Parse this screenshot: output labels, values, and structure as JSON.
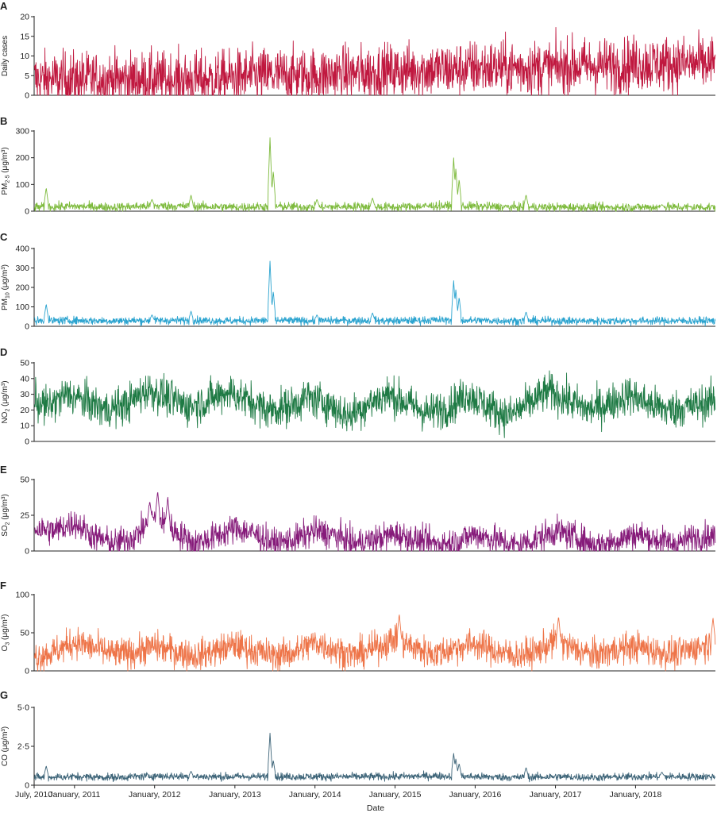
{
  "chart_data": [
    {
      "panel": "A",
      "type": "line",
      "ylabel": "Daily cases",
      "ylabel_sub": "",
      "ylabel_unit": "",
      "ylim": [
        0,
        20
      ],
      "yticks": [
        "0",
        "5",
        "10",
        "15",
        "20"
      ],
      "color": "#c0183f",
      "series": [
        {
          "x": [
            "2010-07-01",
            "2010-10-01",
            "2011-01-01",
            "2011-04-01",
            "2011-07-01",
            "2011-10-01",
            "2012-01-01",
            "2012-04-01",
            "2012-07-01",
            "2012-10-01",
            "2013-01-01",
            "2013-04-01",
            "2013-07-01",
            "2013-10-01",
            "2014-01-01",
            "2014-04-01",
            "2014-07-01",
            "2014-10-01",
            "2015-01-01",
            "2015-04-01",
            "2015-07-01",
            "2015-10-01",
            "2016-01-01",
            "2016-04-01",
            "2016-07-01",
            "2016-10-01",
            "2017-01-01",
            "2017-04-01",
            "2017-07-01",
            "2017-10-01",
            "2018-01-01",
            "2018-04-01",
            "2018-07-01",
            "2018-10-01",
            "2018-12-31"
          ],
          "values": [
            4,
            4,
            4,
            4,
            4,
            4,
            4,
            4,
            4,
            4,
            4.5,
            5,
            5,
            5,
            5,
            5.5,
            5.5,
            6,
            6,
            6.5,
            6.5,
            6.5,
            7,
            7,
            7,
            7,
            7,
            7.5,
            7.5,
            7.5,
            8,
            8,
            8,
            8,
            8
          ],
          "noise": 3.5,
          "peaks": []
        }
      ]
    },
    {
      "panel": "B",
      "type": "line",
      "ylabel": "PM",
      "ylabel_sub": "2·5",
      "ylabel_unit": " (μg/m³)",
      "ylim": [
        0,
        300
      ],
      "yticks": [
        "0",
        "100",
        "200",
        "300"
      ],
      "color": "#7dba3c",
      "series": [
        {
          "x": [
            "2010-07-01",
            "2011-01-01",
            "2011-07-01",
            "2012-01-01",
            "2012-07-01",
            "2013-01-01",
            "2013-07-01",
            "2014-01-01",
            "2014-07-01",
            "2015-01-01",
            "2015-07-01",
            "2016-01-01",
            "2016-07-01",
            "2017-01-01",
            "2017-07-01",
            "2018-01-01",
            "2018-07-01",
            "2018-12-31"
          ],
          "values": [
            15,
            18,
            15,
            20,
            18,
            15,
            18,
            15,
            18,
            15,
            20,
            18,
            15,
            15,
            14,
            15,
            15,
            15
          ],
          "noise": 8,
          "peaks": [
            [
              "2010-08-25",
              88
            ],
            [
              "2011-12-20",
              45
            ],
            [
              "2012-06-15",
              60
            ],
            [
              "2013-06-10",
              275
            ],
            [
              "2013-06-25",
              150
            ],
            [
              "2014-01-10",
              45
            ],
            [
              "2014-09-20",
              50
            ],
            [
              "2015-09-25",
              200
            ],
            [
              "2015-10-05",
              160
            ],
            [
              "2015-10-20",
              120
            ],
            [
              "2016-08-20",
              62
            ],
            [
              "2018-05-01",
              25
            ]
          ]
        }
      ]
    },
    {
      "panel": "C",
      "type": "line",
      "ylabel": "PM",
      "ylabel_sub": "10",
      "ylabel_unit": " (μg/m³)",
      "ylim": [
        0,
        400
      ],
      "yticks": [
        "0",
        "100",
        "200",
        "300",
        "400"
      ],
      "color": "#2aa3cf",
      "series": [
        {
          "x": [
            "2010-07-01",
            "2011-01-01",
            "2011-07-01",
            "2012-01-01",
            "2012-07-01",
            "2013-01-01",
            "2013-07-01",
            "2014-01-01",
            "2014-07-01",
            "2015-01-01",
            "2015-07-01",
            "2016-01-01",
            "2016-07-01",
            "2017-01-01",
            "2017-07-01",
            "2018-01-01",
            "2018-07-01",
            "2018-12-31"
          ],
          "values": [
            28,
            30,
            28,
            30,
            30,
            28,
            30,
            28,
            30,
            28,
            32,
            30,
            28,
            28,
            27,
            28,
            28,
            28
          ],
          "noise": 10,
          "peaks": [
            [
              "2010-08-25",
              115
            ],
            [
              "2011-12-20",
              60
            ],
            [
              "2012-06-15",
              78
            ],
            [
              "2013-06-10",
              335
            ],
            [
              "2013-06-25",
              180
            ],
            [
              "2014-01-10",
              60
            ],
            [
              "2014-09-20",
              70
            ],
            [
              "2015-09-25",
              235
            ],
            [
              "2015-10-05",
              190
            ],
            [
              "2015-10-20",
              150
            ],
            [
              "2016-08-20",
              75
            ]
          ]
        }
      ]
    },
    {
      "panel": "D",
      "type": "line",
      "ylabel": "NO",
      "ylabel_sub": "2",
      "ylabel_unit": " (μg/m³)",
      "ylim": [
        0,
        50
      ],
      "yticks": [
        "0",
        "10",
        "20",
        "30",
        "40",
        "50"
      ],
      "color": "#1e7a44",
      "series": [
        {
          "x": [
            "2010-07-01",
            "2010-09-01",
            "2010-12-01",
            "2011-03-01",
            "2011-06-01",
            "2011-09-01",
            "2011-12-01",
            "2012-03-01",
            "2012-06-01",
            "2012-09-01",
            "2012-12-01",
            "2013-03-01",
            "2013-06-01",
            "2013-09-01",
            "2013-12-01",
            "2014-03-01",
            "2014-06-01",
            "2014-09-01",
            "2014-12-01",
            "2015-03-01",
            "2015-06-01",
            "2015-09-01",
            "2015-12-01",
            "2016-03-01",
            "2016-06-01",
            "2016-09-01",
            "2016-12-01",
            "2017-03-01",
            "2017-06-01",
            "2017-09-01",
            "2017-12-01",
            "2018-03-01",
            "2018-06-01",
            "2018-09-01",
            "2018-12-31"
          ],
          "values": [
            26,
            22,
            30,
            25,
            20,
            24,
            33,
            28,
            22,
            26,
            32,
            26,
            20,
            22,
            28,
            24,
            16,
            24,
            30,
            24,
            18,
            22,
            30,
            22,
            16,
            24,
            32,
            26,
            20,
            24,
            30,
            24,
            20,
            22,
            26
          ],
          "noise": 6,
          "peaks": []
        }
      ]
    },
    {
      "panel": "E",
      "type": "line",
      "ylabel": "SO",
      "ylabel_sub": "2",
      "ylabel_unit": " (μg/m³)",
      "ylim": [
        0,
        50
      ],
      "yticks": [
        "0",
        "25",
        "50"
      ],
      "color": "#861b7a",
      "series": [
        {
          "x": [
            "2010-07-01",
            "2010-10-01",
            "2011-01-01",
            "2011-04-01",
            "2011-07-01",
            "2011-10-01",
            "2012-01-01",
            "2012-04-01",
            "2012-07-01",
            "2012-10-01",
            "2013-01-01",
            "2013-04-01",
            "2013-07-01",
            "2013-10-01",
            "2014-01-01",
            "2014-04-01",
            "2014-07-01",
            "2014-10-01",
            "2015-01-01",
            "2015-04-01",
            "2015-07-01",
            "2015-10-01",
            "2016-01-01",
            "2016-04-01",
            "2016-07-01",
            "2016-10-01",
            "2017-01-01",
            "2017-04-01",
            "2017-07-01",
            "2017-10-01",
            "2018-01-01",
            "2018-04-01",
            "2018-07-01",
            "2018-10-01",
            "2018-12-31"
          ],
          "values": [
            16,
            14,
            20,
            10,
            5,
            10,
            24,
            14,
            5,
            10,
            16,
            12,
            5,
            8,
            14,
            11,
            5,
            8,
            12,
            8,
            5,
            6,
            12,
            8,
            4,
            8,
            14,
            10,
            4,
            7,
            12,
            8,
            5,
            10,
            10
          ],
          "noise": 5,
          "peaks": [
            [
              "2012-01-15",
              42
            ],
            [
              "2012-03-01",
              38
            ],
            [
              "2011-12-10",
              35
            ]
          ]
        }
      ]
    },
    {
      "panel": "F",
      "type": "line",
      "ylabel": "O",
      "ylabel_sub": "3",
      "ylabel_unit": " (μg/m³)",
      "ylim": [
        0,
        100
      ],
      "yticks": [
        "0",
        "50",
        "100"
      ],
      "color": "#ee7448",
      "series": [
        {
          "x": [
            "2010-07-01",
            "2010-10-01",
            "2011-01-01",
            "2011-04-01",
            "2011-07-01",
            "2011-10-01",
            "2012-01-01",
            "2012-04-01",
            "2012-07-01",
            "2012-10-01",
            "2013-01-01",
            "2013-04-01",
            "2013-07-01",
            "2013-10-01",
            "2014-01-01",
            "2014-04-01",
            "2014-07-01",
            "2014-10-01",
            "2015-01-01",
            "2015-04-01",
            "2015-07-01",
            "2015-10-01",
            "2016-01-01",
            "2016-04-01",
            "2016-07-01",
            "2016-10-01",
            "2017-01-01",
            "2017-04-01",
            "2017-07-01",
            "2017-10-01",
            "2018-01-01",
            "2018-04-01",
            "2018-07-01",
            "2018-10-01",
            "2018-12-31"
          ],
          "values": [
            18,
            25,
            38,
            30,
            22,
            24,
            32,
            26,
            20,
            26,
            34,
            26,
            20,
            24,
            38,
            28,
            20,
            30,
            42,
            30,
            22,
            30,
            36,
            26,
            20,
            24,
            40,
            28,
            20,
            28,
            32,
            26,
            22,
            30,
            38
          ],
          "noise": 10,
          "peaks": [
            [
              "2015-01-20",
              75
            ],
            [
              "2017-01-15",
              72
            ],
            [
              "2018-12-20",
              70
            ]
          ]
        }
      ]
    },
    {
      "panel": "G",
      "type": "line",
      "ylabel": "CO",
      "ylabel_sub": "",
      "ylabel_unit": " (μg/m³)",
      "ylim": [
        0,
        5
      ],
      "yticks": [
        "0",
        "2·5",
        "5·0"
      ],
      "color": "#3d6478",
      "series": [
        {
          "x": [
            "2010-07-01",
            "2011-01-01",
            "2011-07-01",
            "2012-01-01",
            "2012-07-01",
            "2013-01-01",
            "2013-07-01",
            "2014-01-01",
            "2014-07-01",
            "2015-01-01",
            "2015-07-01",
            "2016-01-01",
            "2016-07-01",
            "2017-01-01",
            "2017-07-01",
            "2018-01-01",
            "2018-07-01",
            "2018-12-31"
          ],
          "values": [
            0.5,
            0.55,
            0.5,
            0.6,
            0.55,
            0.55,
            0.55,
            0.55,
            0.55,
            0.55,
            0.6,
            0.55,
            0.5,
            0.55,
            0.5,
            0.55,
            0.55,
            0.55
          ],
          "noise": 0.12,
          "peaks": [
            [
              "2010-08-25",
              1.25
            ],
            [
              "2012-06-15",
              0.9
            ],
            [
              "2013-06-10",
              3.35
            ],
            [
              "2013-06-25",
              1.6
            ],
            [
              "2015-09-25",
              2.05
            ],
            [
              "2015-10-05",
              1.7
            ],
            [
              "2015-10-20",
              1.4
            ],
            [
              "2016-08-20",
              1.15
            ],
            [
              "2018-05-01",
              0.85
            ]
          ]
        }
      ]
    }
  ],
  "x_axis": {
    "title": "Date",
    "tick_dates": [
      "2010-07-01",
      "2011-01-01",
      "2012-01-01",
      "2013-01-01",
      "2014-01-01",
      "2015-01-01",
      "2016-01-01",
      "2017-01-01",
      "2018-01-01"
    ],
    "tick_labels": [
      "July, 2010",
      "January, 2011",
      "January, 2012",
      "January, 2013",
      "January, 2014",
      "January, 2015",
      "January, 2016",
      "January, 2017",
      "January, 2018"
    ],
    "start": "2010-07-01",
    "end": "2018-12-31"
  }
}
